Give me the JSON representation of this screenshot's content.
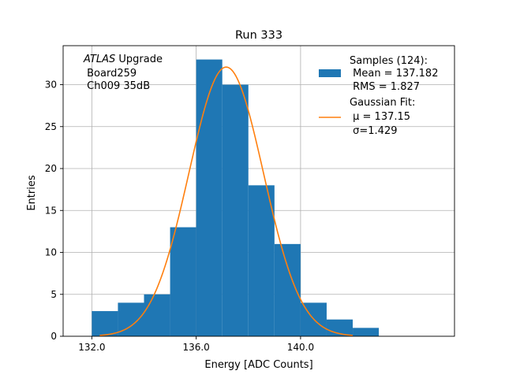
{
  "chart_data": {
    "type": "bar",
    "title": "Run 333",
    "xlabel": "Energy [ADC Counts]",
    "ylabel": "Entries",
    "xlim": [
      130.9,
      145.9
    ],
    "ylim": [
      0,
      34.65
    ],
    "grid": true,
    "x_ticks": [
      132.0,
      136.0,
      140.0
    ],
    "x_tick_labels": [
      "132.0",
      "136.0",
      "140.0"
    ],
    "y_ticks": [
      0,
      5,
      10,
      15,
      20,
      25,
      30
    ],
    "y_tick_labels": [
      "0",
      "5",
      "10",
      "15",
      "20",
      "25",
      "30"
    ],
    "histogram": {
      "bin_edges": [
        132.0,
        133.0,
        134.0,
        135.0,
        136.0,
        137.0,
        138.0,
        139.0,
        140.0,
        141.0,
        142.0,
        143.0
      ],
      "counts": [
        3,
        4,
        5,
        13,
        33,
        30,
        18,
        11,
        4,
        2,
        1
      ],
      "color": "#1f77b4"
    },
    "fit": {
      "type": "gaussian",
      "mu": 137.15,
      "sigma": 1.429,
      "amplitude": 32.1,
      "x_range": [
        132.3,
        142.0
      ],
      "color": "#ff7f0e"
    },
    "annotation": {
      "line1_italic": "ATLAS",
      "line1_rest": " Upgrade",
      "line2": " Board259",
      "line3": " Ch009 35dB"
    },
    "legend": {
      "placement": "top-right",
      "hist_label_lines": [
        "Samples (124):",
        " Mean = 137.182",
        " RMS = 1.827"
      ],
      "fit_label_lines": [
        "Gaussian Fit:",
        " μ = 137.15",
        " σ=1.429"
      ]
    }
  }
}
